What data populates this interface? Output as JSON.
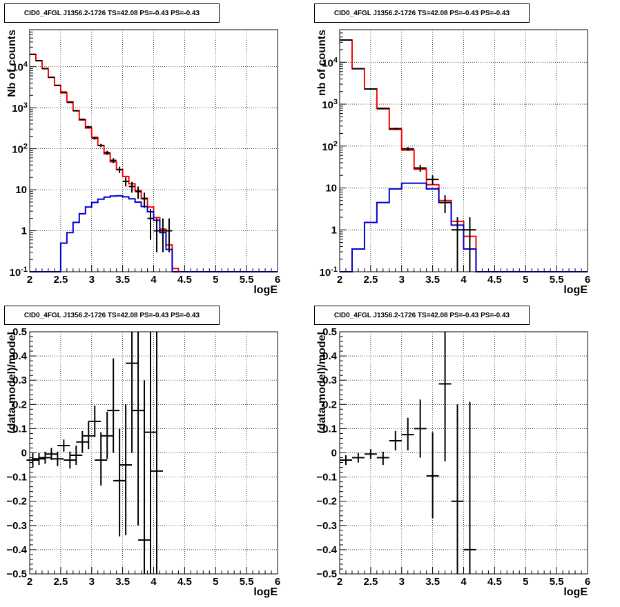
{
  "colors": {
    "data": "#000000",
    "model": "#ff0000",
    "source": "#0000cc",
    "grid": "#000000"
  },
  "chart_data": [
    {
      "id": "counts_fine",
      "type": "line",
      "title": "CID0_4FGL J1356.2-1726 TS=42.08 PS=-0.43 PS=-0.43",
      "xlabel": "logE",
      "ylabel": "Nb of counts",
      "xlim": [
        2,
        6
      ],
      "ylim": [
        0.1,
        80000
      ],
      "yscale": "log",
      "grid": true,
      "x_ticks": [
        "2",
        "2.5",
        "3",
        "3.5",
        "4",
        "4.5",
        "5",
        "5.5",
        "6"
      ],
      "y_ticks": [
        {
          "v": 0.1,
          "label": "10^-1"
        },
        {
          "v": 1,
          "label": "1"
        },
        {
          "v": 10,
          "label": "10"
        },
        {
          "v": 100,
          "label": "10^2"
        },
        {
          "v": 1000,
          "label": "10^3"
        },
        {
          "v": 10000,
          "label": "10^4"
        }
      ],
      "bin_edges": [
        2.0,
        2.1,
        2.2,
        2.3,
        2.4,
        2.5,
        2.6,
        2.7,
        2.8,
        2.9,
        3.0,
        3.1,
        3.2,
        3.3,
        3.4,
        3.5,
        3.6,
        3.7,
        3.8,
        3.9,
        4.0,
        4.1,
        4.2,
        4.3,
        4.4,
        4.5,
        4.6,
        4.7,
        4.8,
        4.9,
        5.0,
        5.1,
        5.2,
        5.3,
        5.4,
        5.5,
        5.6,
        5.7,
        5.8,
        5.9,
        6.0
      ],
      "series": [
        {
          "role": "model",
          "values": [
            20000,
            14000,
            9000,
            5500,
            3500,
            2300,
            1400,
            850,
            500,
            320,
            190,
            120,
            75,
            48,
            31,
            21,
            14,
            9.5,
            6.2,
            3.8,
            2.1,
            1.1,
            0.45,
            0.12,
            0.1,
            0.1,
            0.1,
            0.1,
            0.1,
            0.1,
            0.1,
            0.1,
            0.1,
            0.1,
            0.1,
            0.1,
            0.1,
            0.1,
            0.1,
            0.1
          ]
        },
        {
          "role": "source",
          "values": [
            0.1,
            0.1,
            0.1,
            0.1,
            0.1,
            0.5,
            0.9,
            1.6,
            2.6,
            3.8,
            4.9,
            5.9,
            6.6,
            7.0,
            7.1,
            6.7,
            6.0,
            5.0,
            3.9,
            2.9,
            1.8,
            0.9,
            0.35,
            0.1,
            0.1,
            0.1,
            0.1,
            0.1,
            0.1,
            0.1,
            0.1,
            0.1,
            0.1,
            0.1,
            0.1,
            0.1,
            0.1,
            0.1,
            0.1,
            0.1
          ]
        }
      ],
      "points": [
        {
          "x": 2.05,
          "y": 20000,
          "lo": 19900,
          "hi": 20100
        },
        {
          "x": 2.15,
          "y": 14000,
          "lo": 13900,
          "hi": 14100
        },
        {
          "x": 2.25,
          "y": 9000,
          "lo": 8900,
          "hi": 9100
        },
        {
          "x": 2.35,
          "y": 5500,
          "lo": 5420,
          "hi": 5580
        },
        {
          "x": 2.45,
          "y": 3500,
          "lo": 3440,
          "hi": 3560
        },
        {
          "x": 2.55,
          "y": 2400,
          "lo": 2350,
          "hi": 2450
        },
        {
          "x": 2.65,
          "y": 1350,
          "lo": 1310,
          "hi": 1390
        },
        {
          "x": 2.75,
          "y": 840,
          "lo": 810,
          "hi": 870
        },
        {
          "x": 2.85,
          "y": 520,
          "lo": 500,
          "hi": 545
        },
        {
          "x": 2.95,
          "y": 340,
          "lo": 320,
          "hi": 360
        },
        {
          "x": 3.05,
          "y": 180,
          "lo": 167,
          "hi": 194
        },
        {
          "x": 3.15,
          "y": 120,
          "lo": 109,
          "hi": 131
        },
        {
          "x": 3.25,
          "y": 80,
          "lo": 71,
          "hi": 89
        },
        {
          "x": 3.35,
          "y": 52,
          "lo": 45,
          "hi": 59
        },
        {
          "x": 3.45,
          "y": 31,
          "lo": 25.5,
          "hi": 36.5
        },
        {
          "x": 3.55,
          "y": 16,
          "lo": 12,
          "hi": 20
        },
        {
          "x": 3.65,
          "y": 12,
          "lo": 8.5,
          "hi": 15.5
        },
        {
          "x": 3.75,
          "y": 9,
          "lo": 6,
          "hi": 12
        },
        {
          "x": 3.85,
          "y": 6,
          "lo": 3.6,
          "hi": 8.5
        },
        {
          "x": 3.95,
          "y": 2,
          "lo": 0.6,
          "hi": 3.4
        },
        {
          "x": 4.05,
          "y": 1,
          "lo": 0.3,
          "hi": 2
        },
        {
          "x": 4.15,
          "y": 1,
          "lo": 0.3,
          "hi": 2
        },
        {
          "x": 4.25,
          "y": 1,
          "lo": 0.3,
          "hi": 2
        }
      ]
    },
    {
      "id": "counts_coarse",
      "type": "line",
      "title": "CID0_4FGL J1356.2-1726 TS=42.08 PS=-0.43 PS=-0.43",
      "xlabel": "logE",
      "ylabel": "nb of counts",
      "xlim": [
        2,
        6
      ],
      "ylim": [
        0.1,
        60000
      ],
      "yscale": "log",
      "grid": true,
      "x_ticks": [
        "2",
        "2.5",
        "3",
        "3.5",
        "4",
        "4.5",
        "5",
        "5.5",
        "6"
      ],
      "y_ticks": [
        {
          "v": 0.1,
          "label": "10^-1"
        },
        {
          "v": 1,
          "label": "1"
        },
        {
          "v": 10,
          "label": "10"
        },
        {
          "v": 100,
          "label": "10^2"
        },
        {
          "v": 1000,
          "label": "10^3"
        },
        {
          "v": 10000,
          "label": "10^4"
        }
      ],
      "bin_edges": [
        2.0,
        2.2,
        2.4,
        2.6,
        2.8,
        3.0,
        3.2,
        3.4,
        3.6,
        3.8,
        4.0,
        4.2,
        4.4,
        4.6,
        4.8,
        5.0,
        5.2,
        5.4,
        5.6,
        5.8,
        6.0
      ],
      "series": [
        {
          "role": "model",
          "values": [
            34000,
            7000,
            2300,
            800,
            250,
            80,
            28,
            12,
            5,
            1.6,
            0.7,
            0.1,
            0.1,
            0.1,
            0.1,
            0.1,
            0.1,
            0.1,
            0.1,
            0.1
          ]
        },
        {
          "role": "source",
          "values": [
            0.1,
            0.35,
            1.5,
            4.5,
            9.5,
            13,
            13,
            9.5,
            4.5,
            1.3,
            0.35,
            0.1,
            0.1,
            0.1,
            0.1,
            0.1,
            0.1,
            0.1,
            0.1,
            0.1
          ]
        }
      ],
      "points": [
        {
          "x": 2.1,
          "y": 34000,
          "lo": 33800,
          "hi": 34200
        },
        {
          "x": 2.3,
          "y": 7000,
          "lo": 6900,
          "hi": 7100
        },
        {
          "x": 2.5,
          "y": 2300,
          "lo": 2250,
          "hi": 2350
        },
        {
          "x": 2.7,
          "y": 780,
          "lo": 752,
          "hi": 808
        },
        {
          "x": 2.9,
          "y": 260,
          "lo": 244,
          "hi": 276
        },
        {
          "x": 3.1,
          "y": 86,
          "lo": 77,
          "hi": 95
        },
        {
          "x": 3.3,
          "y": 30,
          "lo": 24.5,
          "hi": 35.5
        },
        {
          "x": 3.5,
          "y": 16,
          "lo": 12,
          "hi": 20
        },
        {
          "x": 3.7,
          "y": 4.5,
          "lo": 2.5,
          "hi": 6.7
        },
        {
          "x": 3.9,
          "y": 1,
          "lo": 0.1,
          "hi": 2
        },
        {
          "x": 4.1,
          "y": 1,
          "lo": 0.1,
          "hi": 2
        }
      ]
    },
    {
      "id": "residuals_fine",
      "type": "scatter",
      "title": "CID0_4FGL J1356.2-1726 TS=42.08 PS=-0.43 PS=-0.43",
      "xlabel": "logE",
      "ylabel": "(data-model)/model",
      "xlim": [
        2,
        6
      ],
      "ylim": [
        -0.5,
        0.5
      ],
      "yscale": "linear",
      "grid": true,
      "x_ticks": [
        "2",
        "2.5",
        "3",
        "3.5",
        "4",
        "4.5",
        "5",
        "5.5",
        "6"
      ],
      "y_ticks": [
        {
          "v": -0.5,
          "label": "−0.5"
        },
        {
          "v": -0.4,
          "label": "−0.4"
        },
        {
          "v": -0.3,
          "label": "−0.3"
        },
        {
          "v": -0.2,
          "label": "−0.2"
        },
        {
          "v": -0.1,
          "label": "−0.1"
        },
        {
          "v": 0,
          "label": "0"
        },
        {
          "v": 0.1,
          "label": "0.1"
        },
        {
          "v": 0.2,
          "label": "0.2"
        },
        {
          "v": 0.3,
          "label": "0.3"
        },
        {
          "v": 0.4,
          "label": "0.4"
        },
        {
          "v": 0.5,
          "label": "0.5"
        }
      ],
      "points": [
        {
          "x": 2.05,
          "y": -0.03,
          "lo": -0.06,
          "hi": 0.0
        },
        {
          "x": 2.15,
          "y": -0.025,
          "lo": -0.05,
          "hi": 0.0
        },
        {
          "x": 2.25,
          "y": -0.02,
          "lo": -0.045,
          "hi": 0.005
        },
        {
          "x": 2.35,
          "y": -0.005,
          "lo": -0.03,
          "hi": 0.02
        },
        {
          "x": 2.45,
          "y": -0.025,
          "lo": -0.055,
          "hi": 0.005
        },
        {
          "x": 2.55,
          "y": 0.03,
          "lo": 0.005,
          "hi": 0.055
        },
        {
          "x": 2.65,
          "y": -0.03,
          "lo": -0.065,
          "hi": 0.005
        },
        {
          "x": 2.75,
          "y": -0.01,
          "lo": -0.05,
          "hi": 0.03
        },
        {
          "x": 2.85,
          "y": 0.045,
          "lo": 0.0,
          "hi": 0.09
        },
        {
          "x": 2.95,
          "y": 0.07,
          "lo": 0.015,
          "hi": 0.13
        },
        {
          "x": 3.05,
          "y": 0.13,
          "lo": 0.065,
          "hi": 0.195
        },
        {
          "x": 3.15,
          "y": -0.03,
          "lo": -0.135,
          "hi": 0.085
        },
        {
          "x": 3.25,
          "y": 0.07,
          "lo": -0.025,
          "hi": 0.17
        },
        {
          "x": 3.35,
          "y": 0.175,
          "lo": 0.0,
          "hi": 0.39
        },
        {
          "x": 3.45,
          "y": -0.115,
          "lo": -0.345,
          "hi": 0.1
        },
        {
          "x": 3.55,
          "y": -0.05,
          "lo": -0.34,
          "hi": 0.2
        },
        {
          "x": 3.65,
          "y": 0.37,
          "lo": 0.0,
          "hi": 0.5
        },
        {
          "x": 3.75,
          "y": 0.175,
          "lo": -0.3,
          "hi": 0.5
        },
        {
          "x": 3.85,
          "y": -0.36,
          "lo": -0.5,
          "hi": 0.3
        },
        {
          "x": 3.95,
          "y": 0.085,
          "lo": -0.5,
          "hi": 0.5
        },
        {
          "x": 4.05,
          "y": -0.075,
          "lo": -0.5,
          "hi": 0.5
        }
      ]
    },
    {
      "id": "residuals_coarse",
      "type": "scatter",
      "title": "CID0_4FGL J1356.2-1726 TS=42.08 PS=-0.43 PS=-0.43",
      "xlabel": "logE",
      "ylabel": "(data-model)/model",
      "xlim": [
        2,
        6
      ],
      "ylim": [
        -0.5,
        0.5
      ],
      "yscale": "linear",
      "grid": true,
      "x_ticks": [
        "2",
        "2.5",
        "3",
        "3.5",
        "4",
        "4.5",
        "5",
        "5.5",
        "6"
      ],
      "y_ticks": [
        {
          "v": -0.5,
          "label": "−0.5"
        },
        {
          "v": -0.4,
          "label": "−0.4"
        },
        {
          "v": -0.3,
          "label": "−0.3"
        },
        {
          "v": -0.2,
          "label": "−0.2"
        },
        {
          "v": -0.1,
          "label": "−0.1"
        },
        {
          "v": 0,
          "label": "0"
        },
        {
          "v": 0.1,
          "label": "0.1"
        },
        {
          "v": 0.2,
          "label": "0.2"
        },
        {
          "v": 0.3,
          "label": "0.3"
        },
        {
          "v": 0.4,
          "label": "0.4"
        },
        {
          "v": 0.5,
          "label": "0.5"
        }
      ],
      "points": [
        {
          "x": 2.1,
          "y": -0.03,
          "lo": -0.05,
          "hi": -0.01
        },
        {
          "x": 2.3,
          "y": -0.02,
          "lo": -0.04,
          "hi": 0.0
        },
        {
          "x": 2.5,
          "y": -0.005,
          "lo": -0.025,
          "hi": 0.015
        },
        {
          "x": 2.7,
          "y": -0.02,
          "lo": -0.05,
          "hi": 0.005
        },
        {
          "x": 2.9,
          "y": 0.05,
          "lo": 0.01,
          "hi": 0.09
        },
        {
          "x": 3.1,
          "y": 0.075,
          "lo": 0.01,
          "hi": 0.145
        },
        {
          "x": 3.3,
          "y": 0.1,
          "lo": -0.02,
          "hi": 0.22
        },
        {
          "x": 3.5,
          "y": -0.095,
          "lo": -0.27,
          "hi": 0.085
        },
        {
          "x": 3.7,
          "y": 0.285,
          "lo": -0.035,
          "hi": 0.5
        },
        {
          "x": 3.9,
          "y": -0.2,
          "lo": -0.5,
          "hi": 0.2
        },
        {
          "x": 4.1,
          "y": -0.4,
          "lo": -0.5,
          "hi": 0.21
        }
      ]
    }
  ]
}
